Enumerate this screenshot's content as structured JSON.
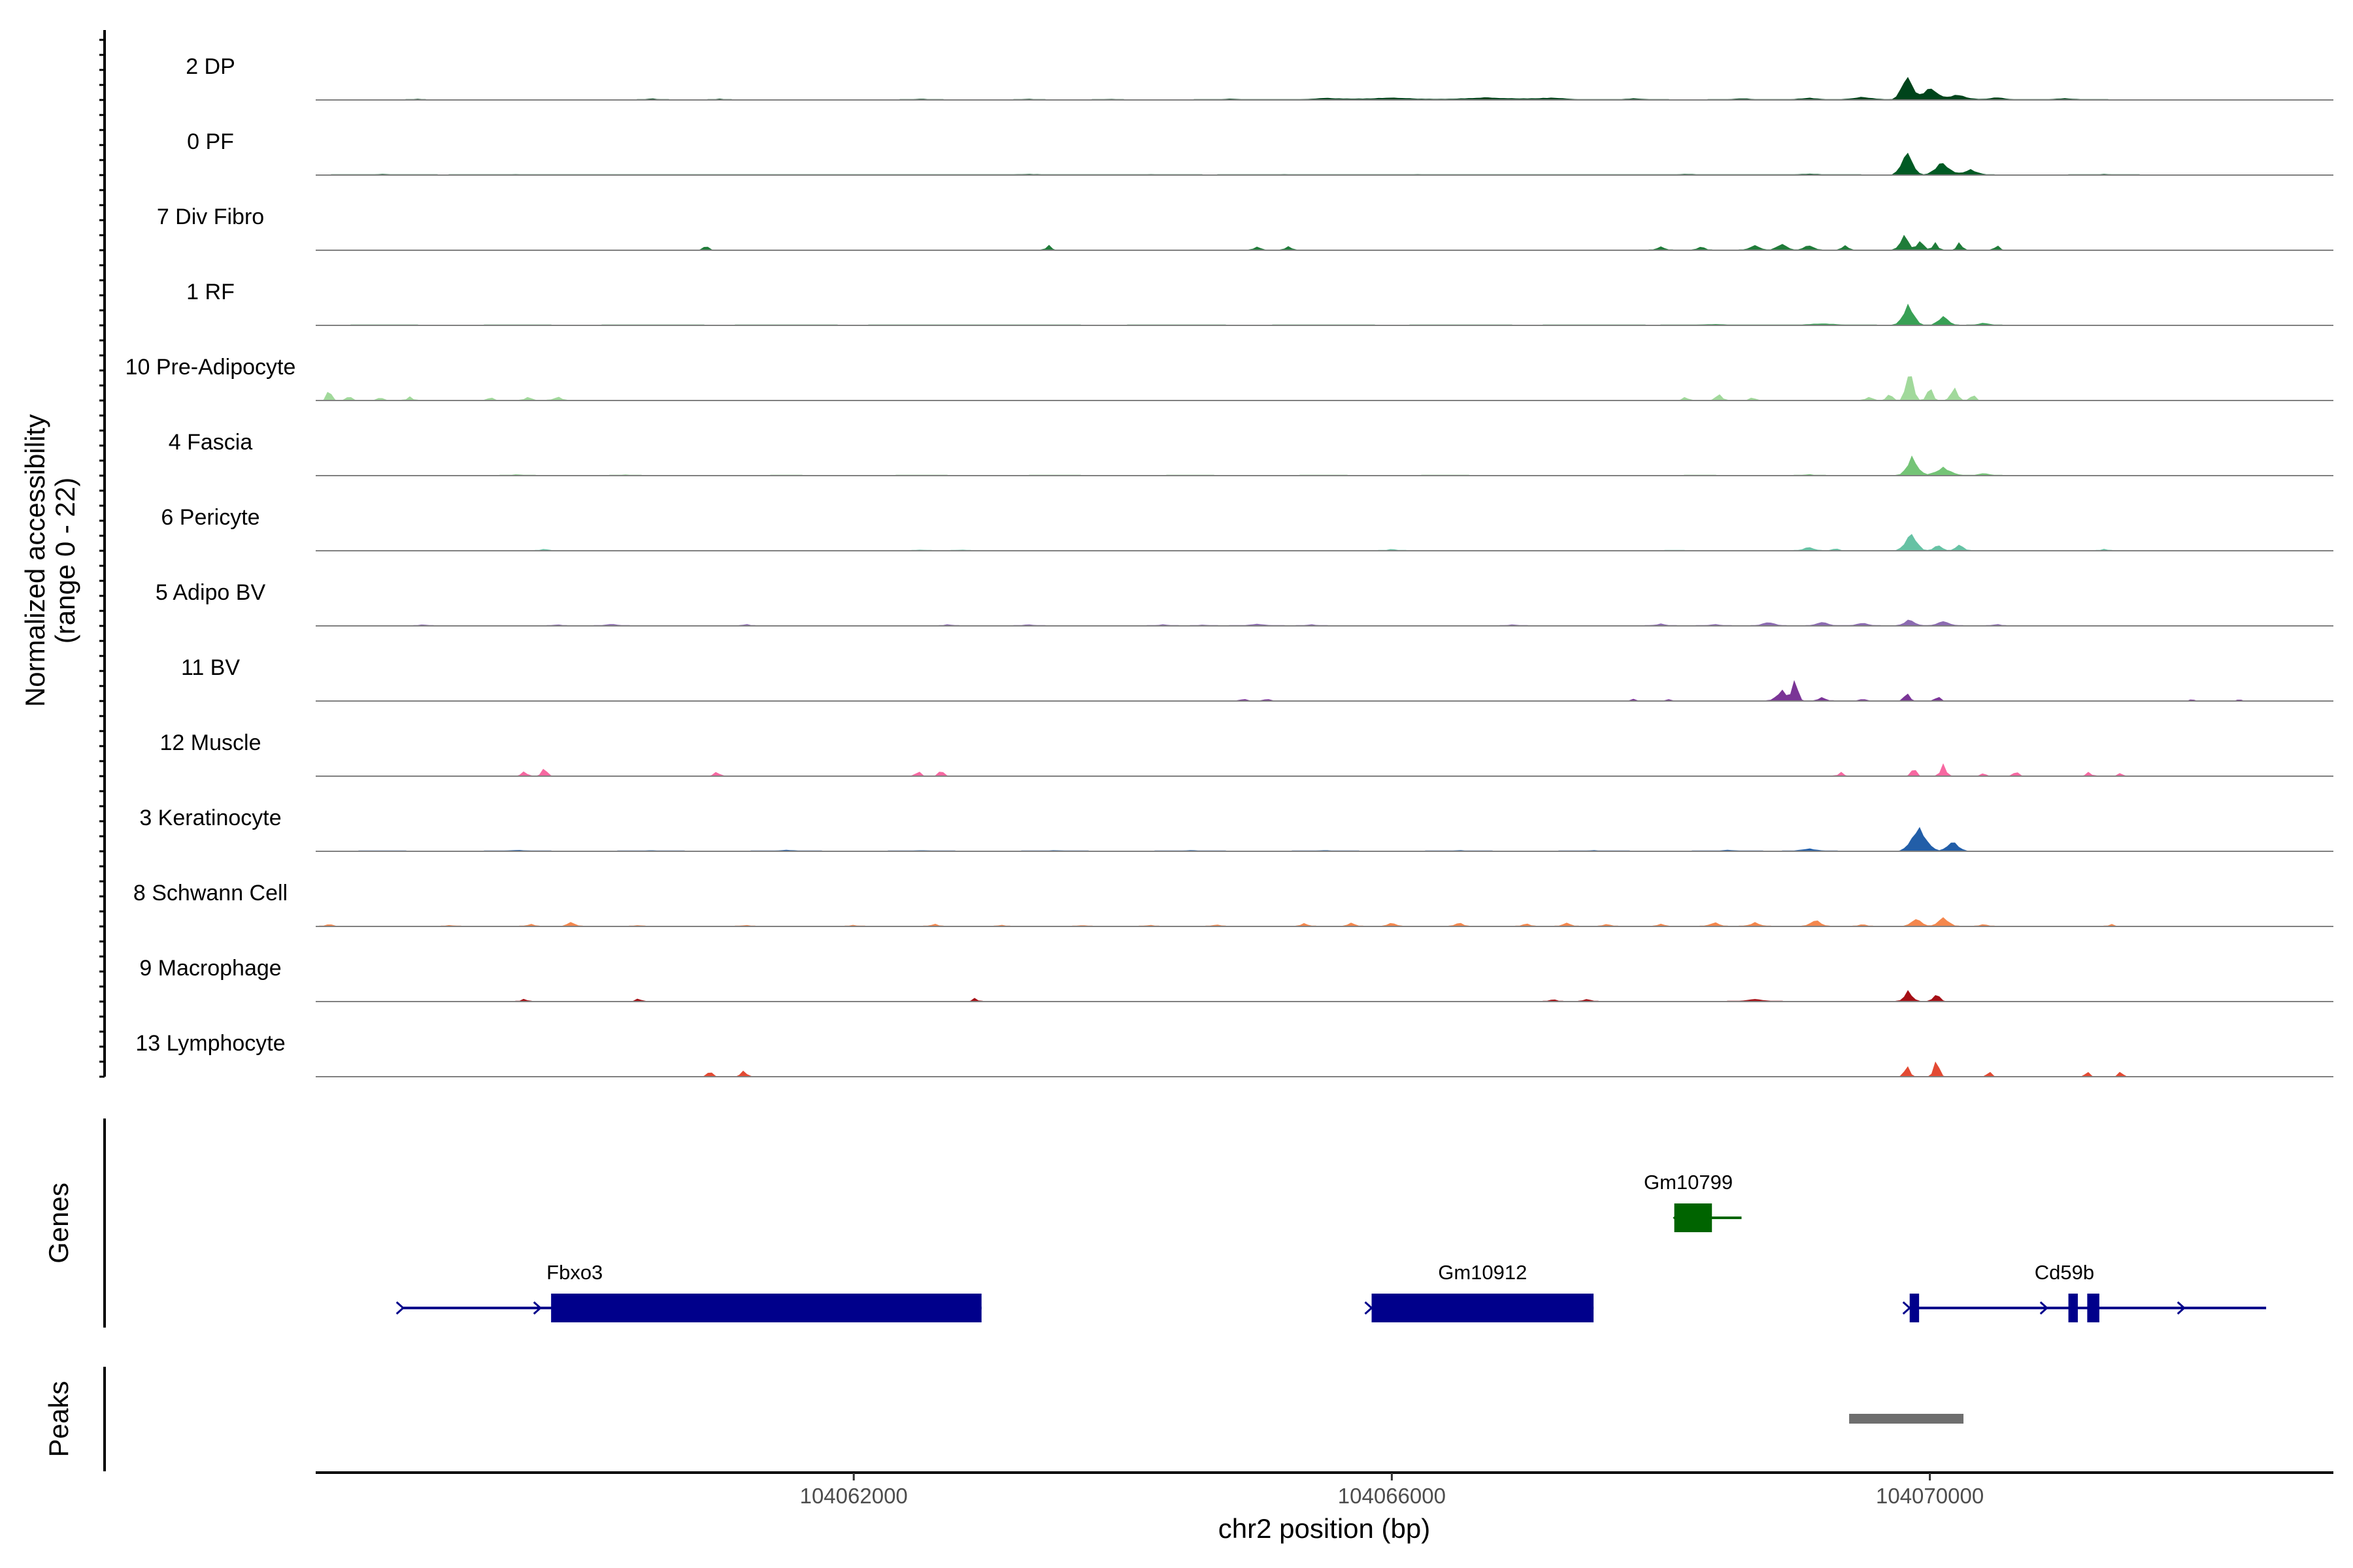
{
  "chart_data": {
    "type": "area",
    "title": "",
    "xlabel": "chr2 position (bp)",
    "ylabel": "Normalized accessibility\n(range 0 - 22)",
    "ylim": [
      0,
      22
    ],
    "xlim": [
      104058000,
      104073000
    ],
    "x_ticks": [
      104062000,
      104066000,
      104070000
    ],
    "x_tick_labels": [
      "104062000",
      "104066000",
      "104070000"
    ],
    "series": [
      {
        "name": "2 DP",
        "color": "#00441b",
        "peaks": [
          [
            104058750,
            60,
            0.5
          ],
          [
            104060500,
            90,
            0.6
          ],
          [
            104061000,
            80,
            0.5
          ],
          [
            104062500,
            120,
            0.5
          ],
          [
            104063300,
            100,
            0.5
          ],
          [
            104063900,
            100,
            0.4
          ],
          [
            104064800,
            200,
            0.5
          ],
          [
            104065500,
            300,
            0.7
          ],
          [
            104066000,
            400,
            0.9
          ],
          [
            104066700,
            400,
            1.0
          ],
          [
            104067200,
            300,
            0.8
          ],
          [
            104067800,
            200,
            0.6
          ],
          [
            104068600,
            200,
            0.6
          ],
          [
            104069100,
            200,
            0.8
          ],
          [
            104069500,
            200,
            1.1
          ],
          [
            104069830,
            80,
            9.5
          ],
          [
            104070000,
            100,
            5.0
          ],
          [
            104070200,
            150,
            2.0
          ],
          [
            104070500,
            150,
            1.0
          ],
          [
            104071000,
            250,
            0.6
          ]
        ]
      },
      {
        "name": "0 PF",
        "color": "#005a24",
        "peaks": [
          [
            104058500,
            300,
            0.4
          ],
          [
            104059500,
            400,
            0.3
          ],
          [
            104060500,
            500,
            0.3
          ],
          [
            104061500,
            400,
            0.3
          ],
          [
            104062500,
            500,
            0.3
          ],
          [
            104063300,
            400,
            0.4
          ],
          [
            104064200,
            300,
            0.3
          ],
          [
            104065200,
            400,
            0.3
          ],
          [
            104066200,
            400,
            0.3
          ],
          [
            104067200,
            400,
            0.3
          ],
          [
            104068200,
            400,
            0.4
          ],
          [
            104069100,
            300,
            0.5
          ],
          [
            104069830,
            80,
            9.5
          ],
          [
            104070090,
            100,
            5.0
          ],
          [
            104070300,
            120,
            2.0
          ],
          [
            104071300,
            200,
            0.4
          ]
        ]
      },
      {
        "name": "7 Div Fibro",
        "color": "#1f7c39",
        "peaks": [
          [
            104060900,
            40,
            2.0
          ],
          [
            104063450,
            40,
            2.0
          ],
          [
            104065000,
            50,
            1.5
          ],
          [
            104065230,
            50,
            1.5
          ],
          [
            104068000,
            60,
            1.5
          ],
          [
            104068300,
            60,
            1.5
          ],
          [
            104068700,
            80,
            2.0
          ],
          [
            104068900,
            80,
            2.5
          ],
          [
            104069100,
            80,
            2.0
          ],
          [
            104069370,
            50,
            2.0
          ],
          [
            104069810,
            60,
            6.0
          ],
          [
            104069930,
            50,
            4.0
          ],
          [
            104070040,
            40,
            3.0
          ],
          [
            104070220,
            40,
            3.0
          ],
          [
            104070500,
            40,
            2.0
          ]
        ]
      },
      {
        "name": "1 RF",
        "color": "#38a055",
        "peaks": [
          [
            104058500,
            200,
            0.3
          ],
          [
            104059500,
            200,
            0.3
          ],
          [
            104060500,
            300,
            0.3
          ],
          [
            104061500,
            300,
            0.3
          ],
          [
            104062500,
            300,
            0.3
          ],
          [
            104063300,
            300,
            0.3
          ],
          [
            104064400,
            300,
            0.3
          ],
          [
            104065500,
            300,
            0.3
          ],
          [
            104066500,
            300,
            0.3
          ],
          [
            104067500,
            300,
            0.3
          ],
          [
            104068400,
            300,
            0.5
          ],
          [
            104069200,
            300,
            0.7
          ],
          [
            104069840,
            80,
            8.0
          ],
          [
            104070100,
            80,
            3.5
          ],
          [
            104070400,
            100,
            1.0
          ]
        ]
      },
      {
        "name": "10 Pre-Adipocyte",
        "color": "#a1d99b",
        "peaks": [
          [
            104058100,
            30,
            5.5
          ],
          [
            104058250,
            40,
            2.0
          ],
          [
            104058480,
            40,
            1.5
          ],
          [
            104058700,
            40,
            1.5
          ],
          [
            104059300,
            40,
            1.5
          ],
          [
            104059580,
            50,
            1.5
          ],
          [
            104059800,
            60,
            1.5
          ],
          [
            104068180,
            40,
            1.5
          ],
          [
            104068430,
            50,
            2.5
          ],
          [
            104068680,
            40,
            1.5
          ],
          [
            104069550,
            50,
            1.5
          ],
          [
            104069700,
            40,
            3.0
          ],
          [
            104069850,
            50,
            13.0
          ],
          [
            104070000,
            40,
            6.0
          ],
          [
            104070180,
            50,
            5.0
          ],
          [
            104070320,
            40,
            2.5
          ]
        ]
      },
      {
        "name": "4 Fascia",
        "color": "#74c476",
        "peaks": [
          [
            104059500,
            100,
            0.5
          ],
          [
            104060300,
            100,
            0.4
          ],
          [
            104061500,
            100,
            0.3
          ],
          [
            104062500,
            150,
            0.3
          ],
          [
            104063500,
            150,
            0.3
          ],
          [
            104064500,
            150,
            0.3
          ],
          [
            104065500,
            150,
            0.3
          ],
          [
            104066400,
            150,
            0.3
          ],
          [
            104068300,
            100,
            0.3
          ],
          [
            104069100,
            100,
            0.5
          ],
          [
            104069870,
            80,
            7.0
          ],
          [
            104070100,
            120,
            3.0
          ],
          [
            104070400,
            100,
            1.0
          ]
        ]
      },
      {
        "name": "6 Pericyte",
        "color": "#66c2a4",
        "peaks": [
          [
            104059700,
            50,
            0.8
          ],
          [
            104062500,
            60,
            0.5
          ],
          [
            104062800,
            60,
            0.5
          ],
          [
            104066000,
            80,
            0.7
          ],
          [
            104068100,
            60,
            0.4
          ],
          [
            104069100,
            80,
            1.5
          ],
          [
            104069300,
            40,
            1.2
          ],
          [
            104069860,
            80,
            7.0
          ],
          [
            104070060,
            60,
            2.5
          ],
          [
            104070220,
            60,
            2.5
          ],
          [
            104071300,
            50,
            0.7
          ]
        ]
      },
      {
        "name": "5 Adipo BV",
        "color": "#8c6bb1",
        "peaks": [
          [
            104058800,
            60,
            0.6
          ],
          [
            104059800,
            60,
            0.6
          ],
          [
            104060200,
            100,
            0.8
          ],
          [
            104061200,
            50,
            0.8
          ],
          [
            104062700,
            60,
            0.7
          ],
          [
            104063300,
            100,
            0.6
          ],
          [
            104064300,
            100,
            0.6
          ],
          [
            104064600,
            80,
            0.5
          ],
          [
            104065000,
            150,
            0.8
          ],
          [
            104065400,
            100,
            0.6
          ],
          [
            104066900,
            80,
            0.6
          ],
          [
            104068000,
            100,
            0.8
          ],
          [
            104068400,
            100,
            0.7
          ],
          [
            104068800,
            100,
            1.5
          ],
          [
            104069200,
            100,
            1.5
          ],
          [
            104069500,
            100,
            1.2
          ],
          [
            104069850,
            80,
            2.5
          ],
          [
            104070100,
            100,
            1.8
          ],
          [
            104070500,
            60,
            0.8
          ]
        ]
      },
      {
        "name": "11 BV",
        "color": "#7a3596",
        "peaks": [
          [
            104064900,
            40,
            1.0
          ],
          [
            104065070,
            40,
            1.0
          ],
          [
            104067800,
            30,
            1.0
          ],
          [
            104068050,
            30,
            1.0
          ],
          [
            104068900,
            80,
            4.0
          ],
          [
            104069000,
            40,
            9.0
          ],
          [
            104069200,
            60,
            1.5
          ],
          [
            104069500,
            40,
            1.0
          ],
          [
            104069830,
            40,
            3.5
          ],
          [
            104070060,
            40,
            2.0
          ],
          [
            104071950,
            30,
            1.0
          ],
          [
            104072300,
            30,
            1.0
          ]
        ]
      },
      {
        "name": "12 Muscle",
        "color": "#f768a1",
        "peaks": [
          [
            104059550,
            40,
            2.0
          ],
          [
            104059700,
            40,
            3.5
          ],
          [
            104060980,
            40,
            2.0
          ],
          [
            104062480,
            40,
            2.0
          ],
          [
            104062650,
            40,
            2.5
          ],
          [
            104069340,
            40,
            1.5
          ],
          [
            104069880,
            40,
            3.5
          ],
          [
            104070100,
            40,
            4.5
          ],
          [
            104070400,
            30,
            1.5
          ],
          [
            104070640,
            40,
            2.0
          ],
          [
            104071180,
            40,
            1.5
          ],
          [
            104071420,
            30,
            1.5
          ]
        ]
      },
      {
        "name": "3 Keratinocyte",
        "color": "#225ea8",
        "peaks": [
          [
            104058500,
            150,
            0.3
          ],
          [
            104059500,
            200,
            0.5
          ],
          [
            104060500,
            200,
            0.4
          ],
          [
            104061500,
            200,
            0.5
          ],
          [
            104062500,
            200,
            0.4
          ],
          [
            104063500,
            200,
            0.4
          ],
          [
            104064500,
            200,
            0.4
          ],
          [
            104065500,
            200,
            0.4
          ],
          [
            104066500,
            200,
            0.4
          ],
          [
            104067500,
            200,
            0.4
          ],
          [
            104068500,
            200,
            0.5
          ],
          [
            104069100,
            150,
            1.0
          ],
          [
            104069920,
            110,
            9.0
          ],
          [
            104070170,
            80,
            4.0
          ]
        ]
      },
      {
        "name": "8 Schwann Cell",
        "color": "#f4874d",
        "peaks": [
          [
            104058100,
            50,
            1.0
          ],
          [
            104059000,
            60,
            0.6
          ],
          [
            104059600,
            60,
            1.0
          ],
          [
            104059900,
            60,
            1.8
          ],
          [
            104060400,
            50,
            0.6
          ],
          [
            104061200,
            60,
            0.6
          ],
          [
            104062000,
            60,
            0.6
          ],
          [
            104062600,
            60,
            1.0
          ],
          [
            104063100,
            60,
            0.6
          ],
          [
            104063700,
            60,
            0.6
          ],
          [
            104064200,
            60,
            0.6
          ],
          [
            104064700,
            60,
            0.8
          ],
          [
            104065350,
            60,
            1.2
          ],
          [
            104065700,
            60,
            1.5
          ],
          [
            104066000,
            60,
            1.6
          ],
          [
            104066500,
            60,
            1.6
          ],
          [
            104067000,
            60,
            1.2
          ],
          [
            104067300,
            60,
            1.5
          ],
          [
            104067600,
            60,
            1.0
          ],
          [
            104068000,
            60,
            1.0
          ],
          [
            104068400,
            80,
            1.5
          ],
          [
            104068700,
            80,
            1.5
          ],
          [
            104069150,
            80,
            2.5
          ],
          [
            104069500,
            60,
            1.0
          ],
          [
            104069900,
            80,
            3.0
          ],
          [
            104070100,
            80,
            3.5
          ],
          [
            104070400,
            60,
            1.0
          ],
          [
            104071350,
            40,
            1.0
          ]
        ]
      },
      {
        "name": "9 Macrophage",
        "color": "#a50f15",
        "peaks": [
          [
            104059550,
            50,
            1.0
          ],
          [
            104060400,
            40,
            1.3
          ],
          [
            104062900,
            40,
            1.3
          ],
          [
            104067200,
            60,
            1.0
          ],
          [
            104067450,
            60,
            1.0
          ],
          [
            104068700,
            150,
            1.0
          ],
          [
            104069840,
            60,
            4.0
          ],
          [
            104070050,
            50,
            3.0
          ]
        ]
      },
      {
        "name": "13 Lymphocyte",
        "color": "#e34a33",
        "peaks": [
          [
            104060930,
            40,
            2.5
          ],
          [
            104061180,
            40,
            2.5
          ],
          [
            104069830,
            40,
            4.5
          ],
          [
            104070050,
            40,
            7.0
          ],
          [
            104070440,
            30,
            2.5
          ],
          [
            104071170,
            30,
            2.5
          ],
          [
            104071420,
            30,
            2.5
          ]
        ]
      }
    ],
    "genes": [
      {
        "name": "Fbxo3",
        "strand": "+",
        "start": 104058650,
        "end": 104062950,
        "exons": [
          [
            104059750,
            104062950
          ]
        ],
        "color": "#00008b"
      },
      {
        "name": "Gm10912",
        "strand": "+",
        "start": 104065850,
        "end": 104067500,
        "exons": [
          [
            104065850,
            104067500
          ]
        ],
        "color": "#00008b"
      },
      {
        "name": "Gm10799",
        "strand": "-",
        "start": 104068100,
        "end": 104068600,
        "exons": [
          [
            104068100,
            104068380
          ]
        ],
        "color": "#006400"
      },
      {
        "name": "Cd59b",
        "strand": "+",
        "start": 104069850,
        "end": 104072500,
        "exons": [
          [
            104069850,
            104069920
          ],
          [
            104071030,
            104071100
          ],
          [
            104071170,
            104071260
          ]
        ],
        "color": "#00008b"
      }
    ],
    "peak_regions": [
      {
        "start": 104069400,
        "end": 104070250
      }
    ],
    "panel_titles": {
      "genes": "Genes",
      "peaks": "Peaks"
    }
  }
}
